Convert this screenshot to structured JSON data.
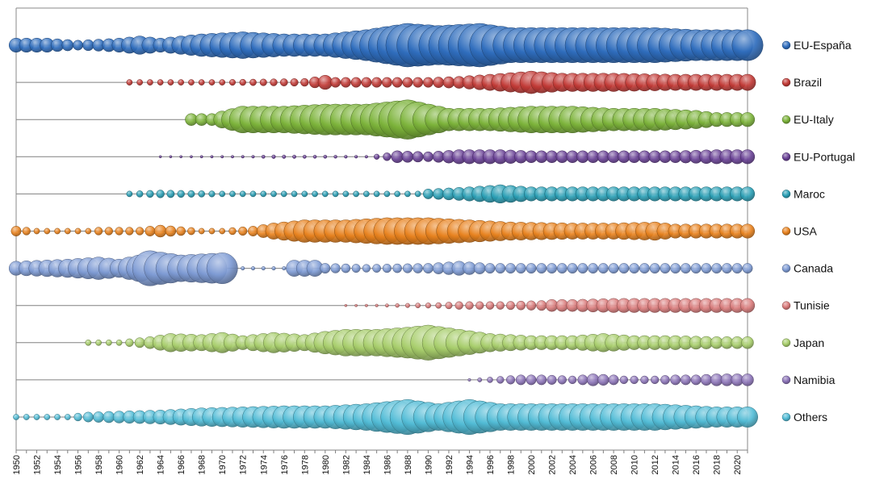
{
  "chart_data": {
    "type": "bubble",
    "title": "",
    "xlabel": "",
    "ylabel": "",
    "xlim": [
      1950,
      2021
    ],
    "grid": false,
    "legend_position": "right",
    "x_tick_labels": [
      "1950",
      "1952",
      "1954",
      "1956",
      "1958",
      "1960",
      "1962",
      "1964",
      "1966",
      "1968",
      "1970",
      "1972",
      "1974",
      "1976",
      "1978",
      "1980",
      "1982",
      "1984",
      "1986",
      "1988",
      "1990",
      "1992",
      "1994",
      "1996",
      "1998",
      "2000",
      "2002",
      "2004",
      "2006",
      "2008",
      "2010",
      "2012",
      "2014",
      "2016",
      "2018",
      "2020"
    ],
    "value_scale_note": "relative bubble size 0-10 estimated from image",
    "series": [
      {
        "name": "EU-España",
        "color": "#2f6dbd",
        "anchors": [
          [
            1950,
            3
          ],
          [
            1953,
            3
          ],
          [
            1956,
            2
          ],
          [
            1960,
            3
          ],
          [
            1962,
            4
          ],
          [
            1964,
            3
          ],
          [
            1966,
            4
          ],
          [
            1968,
            5
          ],
          [
            1972,
            6
          ],
          [
            1976,
            5
          ],
          [
            1980,
            5
          ],
          [
            1984,
            7
          ],
          [
            1988,
            10
          ],
          [
            1991,
            9
          ],
          [
            1995,
            10
          ],
          [
            1998,
            8
          ],
          [
            2002,
            8
          ],
          [
            2006,
            8
          ],
          [
            2012,
            8
          ],
          [
            2016,
            7
          ],
          [
            2021,
            7
          ]
        ]
      },
      {
        "name": "Brazil",
        "color": "#c23a36",
        "anchors": [
          [
            1961,
            1
          ],
          [
            1970,
            1
          ],
          [
            1978,
            1.5
          ],
          [
            1980,
            3
          ],
          [
            1981,
            2
          ],
          [
            1990,
            2
          ],
          [
            1993,
            2.5
          ],
          [
            1996,
            3.5
          ],
          [
            2000,
            5
          ],
          [
            2003,
            4
          ],
          [
            2008,
            4
          ],
          [
            2014,
            3.5
          ],
          [
            2021,
            3.5
          ]
        ]
      },
      {
        "name": "EU-Italy",
        "color": "#7cb33a",
        "anchors": [
          [
            1967,
            2.5
          ],
          [
            1969,
            2.5
          ],
          [
            1972,
            6
          ],
          [
            1976,
            6
          ],
          [
            1980,
            7
          ],
          [
            1984,
            7
          ],
          [
            1988,
            9
          ],
          [
            1992,
            5
          ],
          [
            1996,
            5
          ],
          [
            2000,
            6
          ],
          [
            2004,
            6
          ],
          [
            2008,
            5
          ],
          [
            2012,
            5
          ],
          [
            2016,
            4
          ],
          [
            2018,
            3
          ],
          [
            2021,
            3
          ]
        ]
      },
      {
        "name": "EU-Portugal",
        "color": "#6a4296",
        "anchors": [
          [
            1964,
            0.2
          ],
          [
            1973,
            0.3
          ],
          [
            1975,
            0.5
          ],
          [
            1984,
            0.3
          ],
          [
            1986,
            1.5
          ],
          [
            1987,
            2.5
          ],
          [
            1990,
            2
          ],
          [
            1993,
            3
          ],
          [
            1997,
            3
          ],
          [
            2000,
            2.5
          ],
          [
            2005,
            2.5
          ],
          [
            2010,
            2.5
          ],
          [
            2014,
            2.5
          ],
          [
            2018,
            3
          ],
          [
            2021,
            3
          ]
        ]
      },
      {
        "name": "Maroc",
        "color": "#2a9fb5",
        "anchors": [
          [
            1961,
            1
          ],
          [
            1964,
            1.5
          ],
          [
            1970,
            1
          ],
          [
            1976,
            1
          ],
          [
            1984,
            1
          ],
          [
            1989,
            1
          ],
          [
            1990,
            2
          ],
          [
            1994,
            3
          ],
          [
            1997,
            4
          ],
          [
            2000,
            3
          ],
          [
            2004,
            3
          ],
          [
            2008,
            3
          ],
          [
            2012,
            3
          ],
          [
            2016,
            3
          ],
          [
            2021,
            3
          ]
        ]
      },
      {
        "name": "USA",
        "color": "#e8821e",
        "anchors": [
          [
            1950,
            2
          ],
          [
            1952,
            1
          ],
          [
            1957,
            1
          ],
          [
            1958,
            1.5
          ],
          [
            1962,
            1.5
          ],
          [
            1964,
            2.5
          ],
          [
            1968,
            1
          ],
          [
            1970,
            1
          ],
          [
            1973,
            2
          ],
          [
            1975,
            3.5
          ],
          [
            1978,
            5
          ],
          [
            1982,
            5
          ],
          [
            1986,
            6
          ],
          [
            1990,
            6
          ],
          [
            1994,
            5
          ],
          [
            1998,
            4
          ],
          [
            2004,
            3.5
          ],
          [
            2008,
            3.5
          ],
          [
            2012,
            4
          ],
          [
            2014,
            3
          ],
          [
            2018,
            3
          ],
          [
            2021,
            3
          ]
        ]
      },
      {
        "name": "Canada",
        "color": "#7e9bd4",
        "anchors": [
          [
            1950,
            3
          ],
          [
            1955,
            4
          ],
          [
            1958,
            5
          ],
          [
            1960,
            4
          ],
          [
            1962,
            6
          ],
          [
            1963,
            8
          ],
          [
            1966,
            6
          ],
          [
            1970,
            7
          ],
          [
            1971,
            0
          ],
          [
            1972,
            0.5
          ],
          [
            1976,
            0.5
          ],
          [
            1977,
            3.5
          ],
          [
            1979,
            3.5
          ],
          [
            1980,
            2
          ],
          [
            1984,
            1.5
          ],
          [
            1990,
            2
          ],
          [
            1993,
            3
          ],
          [
            1996,
            2
          ],
          [
            2004,
            2
          ],
          [
            2010,
            2
          ],
          [
            2014,
            2
          ],
          [
            2018,
            2
          ],
          [
            2021,
            2
          ]
        ]
      },
      {
        "name": "Tunisie",
        "color": "#d97b7b",
        "anchors": [
          [
            1982,
            0.2
          ],
          [
            1985,
            0.3
          ],
          [
            1989,
            0.8
          ],
          [
            1991,
            1
          ],
          [
            1993,
            1.5
          ],
          [
            1997,
            1.5
          ],
          [
            2001,
            2
          ],
          [
            2002,
            2.5
          ],
          [
            2004,
            2.5
          ],
          [
            2008,
            3
          ],
          [
            2012,
            3
          ],
          [
            2016,
            3
          ],
          [
            2021,
            3
          ]
        ]
      },
      {
        "name": "Japan",
        "color": "#a8ce6c",
        "anchors": [
          [
            1957,
            1
          ],
          [
            1960,
            1
          ],
          [
            1961,
            1.5
          ],
          [
            1963,
            2.5
          ],
          [
            1965,
            4
          ],
          [
            1968,
            3.5
          ],
          [
            1970,
            4.5
          ],
          [
            1972,
            3
          ],
          [
            1975,
            4.5
          ],
          [
            1978,
            3.5
          ],
          [
            1980,
            5
          ],
          [
            1982,
            6
          ],
          [
            1985,
            6
          ],
          [
            1988,
            7
          ],
          [
            1990,
            8
          ],
          [
            1993,
            6
          ],
          [
            1996,
            4
          ],
          [
            2000,
            3
          ],
          [
            2004,
            3
          ],
          [
            2007,
            4
          ],
          [
            2010,
            3
          ],
          [
            2014,
            3
          ],
          [
            2018,
            2.5
          ],
          [
            2021,
            2.5
          ]
        ]
      },
      {
        "name": "Namibia",
        "color": "#8c74b8",
        "anchors": [
          [
            1994,
            0.3
          ],
          [
            1999,
            2
          ],
          [
            2001,
            2
          ],
          [
            2004,
            1.5
          ],
          [
            2006,
            2.5
          ],
          [
            2008,
            2
          ],
          [
            2009,
            1.5
          ],
          [
            2012,
            1.5
          ],
          [
            2014,
            2
          ],
          [
            2016,
            2
          ],
          [
            2018,
            2.5
          ],
          [
            2021,
            2.5
          ]
        ]
      },
      {
        "name": "Others",
        "color": "#52bcd6",
        "anchors": [
          [
            1950,
            1
          ],
          [
            1955,
            1
          ],
          [
            1957,
            2
          ],
          [
            1960,
            2.5
          ],
          [
            1964,
            3
          ],
          [
            1968,
            4
          ],
          [
            1972,
            4.5
          ],
          [
            1976,
            5
          ],
          [
            1980,
            5
          ],
          [
            1984,
            6
          ],
          [
            1988,
            8
          ],
          [
            1991,
            6
          ],
          [
            1994,
            8
          ],
          [
            1997,
            6
          ],
          [
            2000,
            6
          ],
          [
            2004,
            6
          ],
          [
            2008,
            6
          ],
          [
            2012,
            6
          ],
          [
            2016,
            5
          ],
          [
            2018,
            4.5
          ],
          [
            2021,
            4.5
          ]
        ]
      }
    ]
  }
}
